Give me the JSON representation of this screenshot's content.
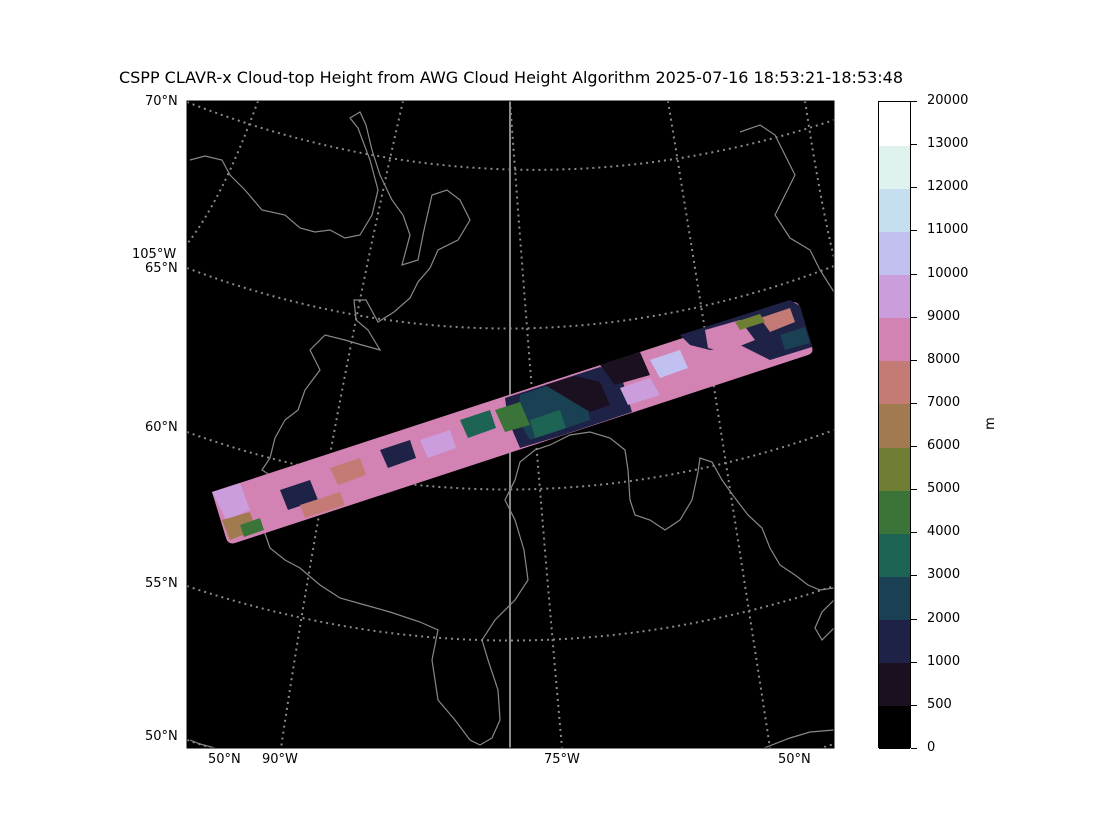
{
  "title": "CSPP CLAVR-x Cloud-top Height from AWG Cloud Height Algorithm 2025-07-16 18:53:21-18:53:48",
  "map": {
    "background_color": "#000000",
    "coastline_color": "#888888",
    "gridline_color": "#8a8a8a",
    "lat_labels": [
      "70°N",
      "65°N",
      "60°N",
      "55°N",
      "50°N"
    ],
    "lon_labels_left": [
      "105°W"
    ],
    "bottom_labels": [
      "50°N",
      "90°W",
      "75°W",
      "50°N"
    ]
  },
  "colorbar": {
    "unit": "m",
    "boundaries": [
      0,
      500,
      1000,
      2000,
      3000,
      4000,
      5000,
      6000,
      7000,
      8000,
      9000,
      10000,
      11000,
      12000,
      13000,
      20000
    ],
    "colors": [
      "#000000",
      "#1b1020",
      "#1e2246",
      "#1a4153",
      "#1d6454",
      "#3a7439",
      "#6e7e32",
      "#a27a4f",
      "#c47b75",
      "#d283b3",
      "#cc9ddd",
      "#c2c0f0",
      "#c5dff1",
      "#dff2ee",
      "#ffffff"
    ]
  }
}
